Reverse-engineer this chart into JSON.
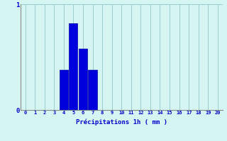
{
  "categories": [
    0,
    1,
    2,
    3,
    4,
    5,
    6,
    7,
    8,
    9,
    10,
    11,
    12,
    13,
    14,
    15,
    16,
    17,
    18,
    19,
    20
  ],
  "bar_values": [
    0,
    0,
    0,
    0,
    0.38,
    0.82,
    0.58,
    0.38,
    0,
    0,
    0,
    0,
    0,
    0,
    0,
    0,
    0,
    0,
    0,
    0,
    0
  ],
  "bar_color": "#0000dd",
  "bar_edge_color": "#0000aa",
  "background_color": "#d5f5f2",
  "grid_color": "#99cccc",
  "xlabel": "Précipitations 1h ( mm )",
  "xlabel_color": "#0000cc",
  "tick_color": "#0000cc",
  "axis_color": "#888888",
  "ylim": [
    0,
    1
  ],
  "xlim_min": -0.5,
  "xlim_max": 20.5,
  "yticks": [
    0,
    1
  ],
  "xticks": [
    0,
    1,
    2,
    3,
    4,
    5,
    6,
    7,
    8,
    9,
    10,
    11,
    12,
    13,
    14,
    15,
    16,
    17,
    18,
    19,
    20
  ],
  "bar_width": 0.9,
  "tick_fontsize": 5.0,
  "xlabel_fontsize": 6.5,
  "ytick_fontsize": 6.5
}
